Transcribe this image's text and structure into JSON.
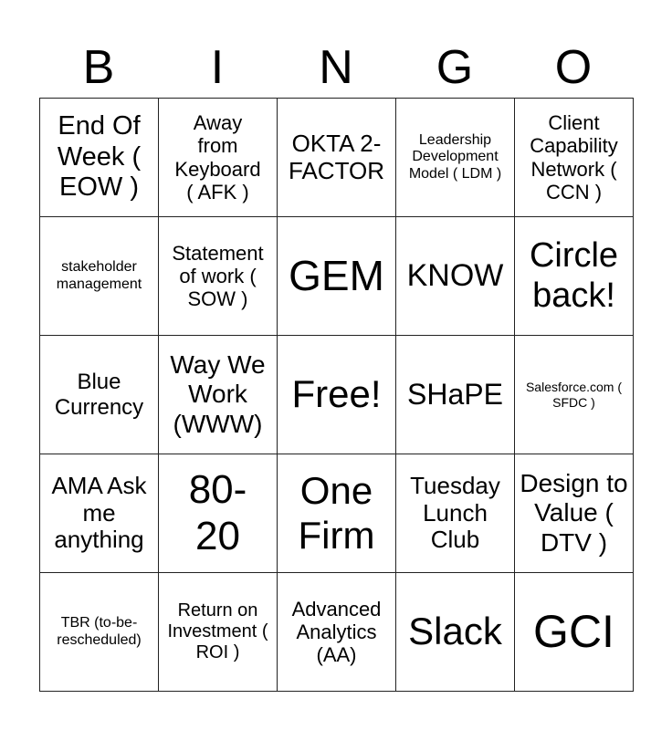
{
  "header": [
    "B",
    "I",
    "N",
    "G",
    "O"
  ],
  "cells": [
    [
      "End Of Week ( EOW )",
      "Away from Keyboard ( AFK )",
      "OKTA 2-FACTOR",
      "Leadership Development Model ( LDM )",
      "Client Capability Network ( CCN )"
    ],
    [
      "stakeholder management",
      "Statement of work ( SOW )",
      "GEM",
      "KNOW",
      "Circle back!"
    ],
    [
      "Blue Currency",
      "Way We Work (WWW)",
      "Free!",
      "SHaPE",
      "Salesforce.com ( SFDC )"
    ],
    [
      "AMA Ask me anything",
      "80-20",
      "One Firm",
      "Tuesday Lunch Club",
      "Design to Value ( DTV )"
    ],
    [
      "TBR (to-be-rescheduled)",
      "Return on Investment ( ROI )",
      "Advanced Analytics (AA)",
      "Slack",
      "GCI"
    ]
  ]
}
